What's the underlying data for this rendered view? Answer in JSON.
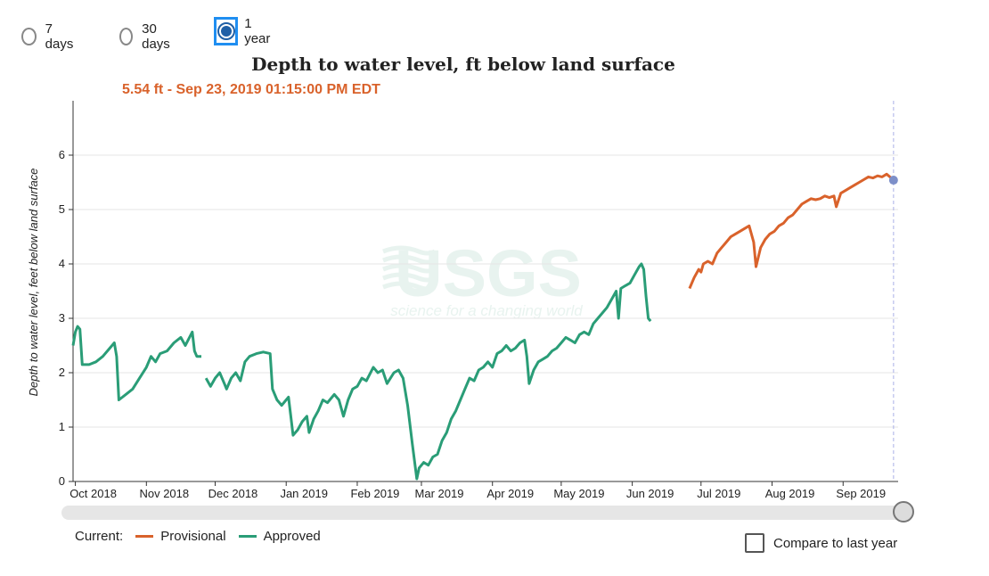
{
  "range_options": [
    {
      "label": "7 days",
      "selected": false
    },
    {
      "label": "30 days",
      "selected": false
    },
    {
      "label": "1 year",
      "selected": true
    }
  ],
  "tooltip": {
    "text": "5.54 ft - Sep 23, 2019 01:15:00 PM EDT"
  },
  "legend": {
    "current_label": "Current:",
    "items": [
      {
        "label": "Provisional",
        "color": "#d9622b"
      },
      {
        "label": "Approved",
        "color": "#2a9d77"
      }
    ]
  },
  "compare": {
    "label": "Compare to last year",
    "checked": false
  },
  "watermark": {
    "logo": "USGS",
    "tagline": "science for a changing world"
  },
  "slider": {
    "value_fraction": 1.0
  },
  "chart_data": {
    "type": "line",
    "title": "Depth to water level, ft below land surface",
    "ylabel": "Depth to water level, feet below land surface",
    "xlabel": "",
    "ylim": [
      0,
      7
    ],
    "xlim": [
      "2018-09-30",
      "2019-09-25"
    ],
    "y_axis_reversed": false,
    "grid": true,
    "yticks": [
      0,
      1,
      2,
      3,
      4,
      5,
      6
    ],
    "xticks": [
      {
        "date": "2018-10-01",
        "label": "Oct 2018"
      },
      {
        "date": "2018-11-01",
        "label": "Nov 2018"
      },
      {
        "date": "2018-12-01",
        "label": "Dec 2018"
      },
      {
        "date": "2019-01-01",
        "label": "Jan 2019"
      },
      {
        "date": "2019-02-01",
        "label": "Feb 2019"
      },
      {
        "date": "2019-03-01",
        "label": "Mar 2019"
      },
      {
        "date": "2019-04-01",
        "label": "Apr 2019"
      },
      {
        "date": "2019-05-01",
        "label": "May 2019"
      },
      {
        "date": "2019-06-01",
        "label": "Jun 2019"
      },
      {
        "date": "2019-07-01",
        "label": "Jul 2019"
      },
      {
        "date": "2019-08-01",
        "label": "Aug 2019"
      },
      {
        "date": "2019-09-01",
        "label": "Sep 2019"
      }
    ],
    "series": [
      {
        "name": "Approved",
        "color": "#2a9d77",
        "points": [
          [
            "2018-09-30",
            2.5
          ],
          [
            "2018-10-01",
            2.75
          ],
          [
            "2018-10-02",
            2.85
          ],
          [
            "2018-10-03",
            2.8
          ],
          [
            "2018-10-04",
            2.15
          ],
          [
            "2018-10-07",
            2.15
          ],
          [
            "2018-10-10",
            2.2
          ],
          [
            "2018-10-13",
            2.3
          ],
          [
            "2018-10-16",
            2.45
          ],
          [
            "2018-10-18",
            2.55
          ],
          [
            "2018-10-19",
            2.3
          ],
          [
            "2018-10-20",
            1.5
          ],
          [
            "2018-10-23",
            1.6
          ],
          [
            "2018-10-26",
            1.7
          ],
          [
            "2018-10-29",
            1.9
          ],
          [
            "2018-11-01",
            2.1
          ],
          [
            "2018-11-03",
            2.3
          ],
          [
            "2018-11-05",
            2.2
          ],
          [
            "2018-11-07",
            2.35
          ],
          [
            "2018-11-10",
            2.4
          ],
          [
            "2018-11-13",
            2.55
          ],
          [
            "2018-11-16",
            2.65
          ],
          [
            "2018-11-18",
            2.5
          ],
          [
            "2018-11-21",
            2.75
          ],
          [
            "2018-11-22",
            2.4
          ],
          [
            "2018-11-23",
            2.3
          ],
          [
            "2018-11-25",
            2.3
          ],
          [
            "2018-11-26",
            null
          ],
          [
            "2018-11-27",
            1.9
          ],
          [
            "2018-11-29",
            1.75
          ],
          [
            "2018-12-01",
            1.9
          ],
          [
            "2018-12-03",
            2.0
          ],
          [
            "2018-12-05",
            1.8
          ],
          [
            "2018-12-06",
            1.7
          ],
          [
            "2018-12-08",
            1.9
          ],
          [
            "2018-12-10",
            2.0
          ],
          [
            "2018-12-12",
            1.85
          ],
          [
            "2018-12-14",
            2.2
          ],
          [
            "2018-12-16",
            2.3
          ],
          [
            "2018-12-19",
            2.35
          ],
          [
            "2018-12-22",
            2.38
          ],
          [
            "2018-12-25",
            2.35
          ],
          [
            "2018-12-26",
            1.7
          ],
          [
            "2018-12-28",
            1.5
          ],
          [
            "2018-12-30",
            1.4
          ],
          [
            "2019-01-02",
            1.55
          ],
          [
            "2019-01-03",
            1.2
          ],
          [
            "2019-01-04",
            0.85
          ],
          [
            "2019-01-06",
            0.95
          ],
          [
            "2019-01-08",
            1.1
          ],
          [
            "2019-01-10",
            1.2
          ],
          [
            "2019-01-11",
            0.9
          ],
          [
            "2019-01-13",
            1.15
          ],
          [
            "2019-01-15",
            1.3
          ],
          [
            "2019-01-17",
            1.5
          ],
          [
            "2019-01-19",
            1.45
          ],
          [
            "2019-01-22",
            1.6
          ],
          [
            "2019-01-24",
            1.5
          ],
          [
            "2019-01-26",
            1.2
          ],
          [
            "2019-01-28",
            1.5
          ],
          [
            "2019-01-30",
            1.7
          ],
          [
            "2019-02-01",
            1.75
          ],
          [
            "2019-02-03",
            1.9
          ],
          [
            "2019-02-05",
            1.85
          ],
          [
            "2019-02-08",
            2.1
          ],
          [
            "2019-02-10",
            2.0
          ],
          [
            "2019-02-12",
            2.05
          ],
          [
            "2019-02-14",
            1.8
          ],
          [
            "2019-02-17",
            2.0
          ],
          [
            "2019-02-19",
            2.05
          ],
          [
            "2019-02-21",
            1.9
          ],
          [
            "2019-02-23",
            1.4
          ],
          [
            "2019-02-25",
            0.7
          ],
          [
            "2019-02-27",
            0.05
          ],
          [
            "2019-02-28",
            0.25
          ],
          [
            "2019-03-02",
            0.35
          ],
          [
            "2019-03-04",
            0.3
          ],
          [
            "2019-03-06",
            0.45
          ],
          [
            "2019-03-08",
            0.5
          ],
          [
            "2019-03-10",
            0.75
          ],
          [
            "2019-03-12",
            0.9
          ],
          [
            "2019-03-14",
            1.15
          ],
          [
            "2019-03-16",
            1.3
          ],
          [
            "2019-03-18",
            1.5
          ],
          [
            "2019-03-20",
            1.7
          ],
          [
            "2019-03-22",
            1.9
          ],
          [
            "2019-03-24",
            1.85
          ],
          [
            "2019-03-26",
            2.05
          ],
          [
            "2019-03-28",
            2.1
          ],
          [
            "2019-03-30",
            2.2
          ],
          [
            "2019-04-01",
            2.1
          ],
          [
            "2019-04-03",
            2.35
          ],
          [
            "2019-04-05",
            2.4
          ],
          [
            "2019-04-07",
            2.5
          ],
          [
            "2019-04-09",
            2.4
          ],
          [
            "2019-04-11",
            2.45
          ],
          [
            "2019-04-13",
            2.55
          ],
          [
            "2019-04-15",
            2.6
          ],
          [
            "2019-04-16",
            2.3
          ],
          [
            "2019-04-17",
            1.8
          ],
          [
            "2019-04-19",
            2.05
          ],
          [
            "2019-04-21",
            2.2
          ],
          [
            "2019-04-23",
            2.25
          ],
          [
            "2019-04-25",
            2.3
          ],
          [
            "2019-04-27",
            2.4
          ],
          [
            "2019-04-29",
            2.45
          ],
          [
            "2019-05-01",
            2.55
          ],
          [
            "2019-05-03",
            2.65
          ],
          [
            "2019-05-05",
            2.6
          ],
          [
            "2019-05-07",
            2.55
          ],
          [
            "2019-05-09",
            2.7
          ],
          [
            "2019-05-11",
            2.75
          ],
          [
            "2019-05-13",
            2.7
          ],
          [
            "2019-05-15",
            2.9
          ],
          [
            "2019-05-17",
            3.0
          ],
          [
            "2019-05-19",
            3.1
          ],
          [
            "2019-05-21",
            3.2
          ],
          [
            "2019-05-23",
            3.35
          ],
          [
            "2019-05-25",
            3.5
          ],
          [
            "2019-05-26",
            3.0
          ],
          [
            "2019-05-27",
            3.55
          ],
          [
            "2019-05-29",
            3.6
          ],
          [
            "2019-05-31",
            3.65
          ],
          [
            "2019-06-02",
            3.8
          ],
          [
            "2019-06-04",
            3.95
          ],
          [
            "2019-06-05",
            4.0
          ],
          [
            "2019-06-06",
            3.9
          ],
          [
            "2019-06-07",
            3.4
          ],
          [
            "2019-06-08",
            3.0
          ],
          [
            "2019-06-09",
            2.95
          ]
        ]
      },
      {
        "name": "Provisional",
        "color": "#d9622b",
        "points": [
          [
            "2019-06-26",
            3.55
          ],
          [
            "2019-06-28",
            3.75
          ],
          [
            "2019-06-30",
            3.9
          ],
          [
            "2019-07-01",
            3.85
          ],
          [
            "2019-07-02",
            4.0
          ],
          [
            "2019-07-04",
            4.05
          ],
          [
            "2019-07-06",
            4.0
          ],
          [
            "2019-07-08",
            4.2
          ],
          [
            "2019-07-10",
            4.3
          ],
          [
            "2019-07-12",
            4.4
          ],
          [
            "2019-07-14",
            4.5
          ],
          [
            "2019-07-16",
            4.55
          ],
          [
            "2019-07-18",
            4.6
          ],
          [
            "2019-07-20",
            4.65
          ],
          [
            "2019-07-22",
            4.7
          ],
          [
            "2019-07-24",
            4.4
          ],
          [
            "2019-07-25",
            3.95
          ],
          [
            "2019-07-27",
            4.3
          ],
          [
            "2019-07-29",
            4.45
          ],
          [
            "2019-07-31",
            4.55
          ],
          [
            "2019-08-02",
            4.6
          ],
          [
            "2019-08-04",
            4.7
          ],
          [
            "2019-08-06",
            4.75
          ],
          [
            "2019-08-08",
            4.85
          ],
          [
            "2019-08-10",
            4.9
          ],
          [
            "2019-08-12",
            5.0
          ],
          [
            "2019-08-14",
            5.1
          ],
          [
            "2019-08-16",
            5.15
          ],
          [
            "2019-08-18",
            5.2
          ],
          [
            "2019-08-20",
            5.18
          ],
          [
            "2019-08-22",
            5.2
          ],
          [
            "2019-08-24",
            5.25
          ],
          [
            "2019-08-26",
            5.22
          ],
          [
            "2019-08-28",
            5.25
          ],
          [
            "2019-08-29",
            5.05
          ],
          [
            "2019-08-31",
            5.3
          ],
          [
            "2019-09-02",
            5.35
          ],
          [
            "2019-09-04",
            5.4
          ],
          [
            "2019-09-06",
            5.45
          ],
          [
            "2019-09-08",
            5.5
          ],
          [
            "2019-09-10",
            5.55
          ],
          [
            "2019-09-12",
            5.6
          ],
          [
            "2019-09-14",
            5.58
          ],
          [
            "2019-09-16",
            5.62
          ],
          [
            "2019-09-18",
            5.6
          ],
          [
            "2019-09-20",
            5.65
          ],
          [
            "2019-09-22",
            5.58
          ],
          [
            "2019-09-23",
            5.54
          ]
        ]
      }
    ],
    "cursor": {
      "date": "2019-09-23",
      "value": 5.54
    }
  }
}
